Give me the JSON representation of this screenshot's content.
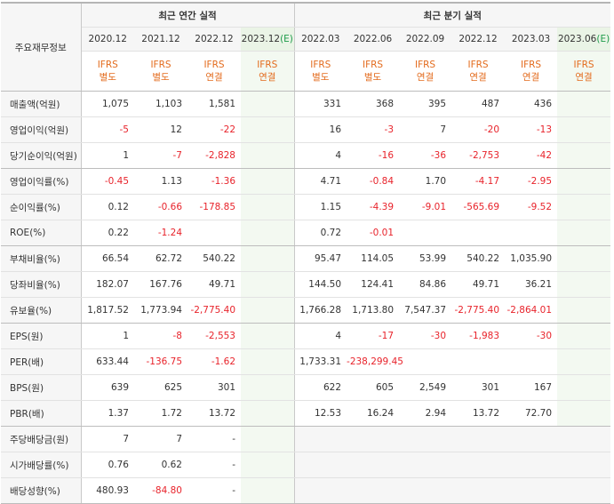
{
  "header": {
    "corner_label": "주요재무정보",
    "annual_group": "최근 연간 실적",
    "quarter_group": "최근 분기 실적",
    "annual_periods": [
      "2020.12",
      "2021.12",
      "2022.12",
      "2023.12"
    ],
    "annual_est_mark": "(E)",
    "quarter_periods": [
      "2022.03",
      "2022.06",
      "2022.09",
      "2022.12",
      "2023.03",
      "2023.06"
    ],
    "quarter_est_mark": "(E)",
    "annual_ifrs": [
      {
        "std": "IFRS",
        "type": "별도"
      },
      {
        "std": "IFRS",
        "type": "별도"
      },
      {
        "std": "IFRS",
        "type": "연결"
      },
      {
        "std": "IFRS",
        "type": "연결"
      }
    ],
    "quarter_ifrs": [
      {
        "std": "IFRS",
        "type": "별도"
      },
      {
        "std": "IFRS",
        "type": "별도"
      },
      {
        "std": "IFRS",
        "type": "연결"
      },
      {
        "std": "IFRS",
        "type": "연결"
      },
      {
        "std": "IFRS",
        "type": "연결"
      },
      {
        "std": "IFRS",
        "type": "연결"
      }
    ]
  },
  "rows": [
    {
      "label": "매출액(억원)",
      "annual": [
        "1,075",
        "1,103",
        "1,581",
        ""
      ],
      "quarter": [
        "331",
        "368",
        "395",
        "487",
        "436",
        ""
      ]
    },
    {
      "label": "영업이익(억원)",
      "annual": [
        "-5",
        "12",
        "-22",
        ""
      ],
      "quarter": [
        "16",
        "-3",
        "7",
        "-20",
        "-13",
        ""
      ]
    },
    {
      "label": "당기순이익(억원)",
      "annual": [
        "1",
        "-7",
        "-2,828",
        ""
      ],
      "quarter": [
        "4",
        "-16",
        "-36",
        "-2,753",
        "-42",
        ""
      ]
    },
    {
      "label": "영업이익률(%)",
      "annual": [
        "-0.45",
        "1.13",
        "-1.36",
        ""
      ],
      "quarter": [
        "4.71",
        "-0.84",
        "1.70",
        "-4.17",
        "-2.95",
        ""
      ]
    },
    {
      "label": "순이익률(%)",
      "annual": [
        "0.12",
        "-0.66",
        "-178.85",
        ""
      ],
      "quarter": [
        "1.15",
        "-4.39",
        "-9.01",
        "-565.69",
        "-9.52",
        ""
      ]
    },
    {
      "label": "ROE(%)",
      "annual": [
        "0.22",
        "-1.24",
        "",
        ""
      ],
      "quarter": [
        "0.72",
        "-0.01",
        "",
        "",
        "",
        ""
      ]
    },
    {
      "label": "부채비율(%)",
      "annual": [
        "66.54",
        "62.72",
        "540.22",
        ""
      ],
      "quarter": [
        "95.47",
        "114.05",
        "53.99",
        "540.22",
        "1,035.90",
        ""
      ]
    },
    {
      "label": "당좌비율(%)",
      "annual": [
        "182.07",
        "167.76",
        "49.71",
        ""
      ],
      "quarter": [
        "144.50",
        "124.41",
        "84.86",
        "49.71",
        "36.21",
        ""
      ]
    },
    {
      "label": "유보율(%)",
      "annual": [
        "1,817.52",
        "1,773.94",
        "-2,775.40",
        ""
      ],
      "quarter": [
        "1,766.28",
        "1,713.80",
        "7,547.37",
        "-2,775.40",
        "-2,864.01",
        ""
      ]
    },
    {
      "label": "EPS(원)",
      "annual": [
        "1",
        "-8",
        "-2,553",
        ""
      ],
      "quarter": [
        "4",
        "-17",
        "-30",
        "-1,983",
        "-30",
        ""
      ]
    },
    {
      "label": "PER(배)",
      "annual": [
        "633.44",
        "-136.75",
        "-1.62",
        ""
      ],
      "quarter": [
        "1,733.31",
        "-238,299.45",
        "",
        "",
        "",
        ""
      ]
    },
    {
      "label": "BPS(원)",
      "annual": [
        "639",
        "625",
        "301",
        ""
      ],
      "quarter": [
        "622",
        "605",
        "2,549",
        "301",
        "167",
        ""
      ]
    },
    {
      "label": "PBR(배)",
      "annual": [
        "1.37",
        "1.72",
        "13.72",
        ""
      ],
      "quarter": [
        "12.53",
        "16.24",
        "2.94",
        "13.72",
        "72.70",
        ""
      ]
    },
    {
      "label": "주당배당금(원)",
      "annual": [
        "7",
        "7",
        "-",
        ""
      ],
      "quarter": [
        "",
        "",
        "",
        "",
        "",
        ""
      ],
      "quarter_gray": true
    },
    {
      "label": "시가배당률(%)",
      "annual": [
        "0.76",
        "0.62",
        "-",
        ""
      ],
      "quarter": [
        "",
        "",
        "",
        "",
        "",
        ""
      ],
      "quarter_gray": true
    },
    {
      "label": "배당성향(%)",
      "annual": [
        "480.93",
        "-84.80",
        "-",
        ""
      ],
      "quarter": [
        "",
        "",
        "",
        "",
        "",
        ""
      ],
      "quarter_gray": true
    }
  ],
  "colors": {
    "negative": "#e8232b",
    "ifrs_text": "#e36b1d",
    "estimate_mark": "#1e9b4a",
    "estimate_bg": "#f3f9f1",
    "header_bg": "#f6f6f6"
  }
}
